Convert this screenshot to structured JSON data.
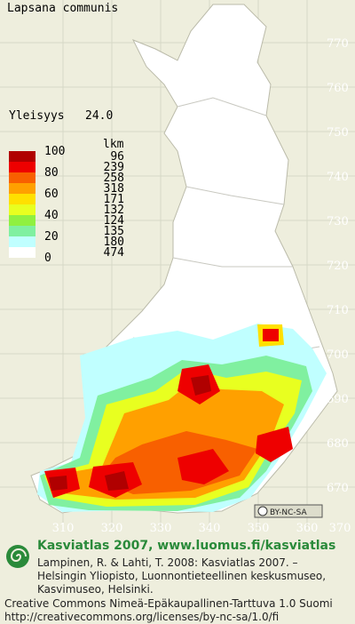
{
  "title": "Lapsana communis",
  "frequency": {
    "label": "Yleisyys",
    "value": "24.0"
  },
  "legend": {
    "scale_labels": [
      100,
      80,
      60,
      40,
      20,
      0
    ],
    "count_header": "lkm",
    "classes": [
      {
        "color": "#b00000",
        "count": 96
      },
      {
        "color": "#ee0000",
        "count": 239
      },
      {
        "color": "#f86000",
        "count": 258
      },
      {
        "color": "#ffa000",
        "count": 318
      },
      {
        "color": "#ffe000",
        "count": 171
      },
      {
        "color": "#e8ff20",
        "count": 132
      },
      {
        "color": "#90f040",
        "count": 124
      },
      {
        "color": "#80f0a0",
        "count": 135
      },
      {
        "color": "#c0ffff",
        "count": 180
      },
      {
        "color": "#ffffff",
        "count": 474
      }
    ]
  },
  "grid": {
    "northings": [
      770,
      760,
      750,
      740,
      730,
      720,
      710,
      700,
      690,
      680,
      670
    ],
    "eastings": [
      310,
      320,
      330,
      340,
      350,
      360,
      370
    ]
  },
  "badge": "BY-NC-SA",
  "footer": {
    "heading": "Kasviatlas 2007, www.luomus.fi/kasviatlas",
    "citation": [
      "Lampinen, R. & Lahti, T. 2008: Kasviatlas 2007. –",
      "Helsingin Yliopisto, Luonnontieteellinen keskusmuseo,",
      "Kasvimuseo, Helsinki."
    ],
    "license": [
      "Creative Commons Nimeä-Epäkaupallinen-Tarttuva 1.0 Suomi",
      "http://creativecommons.org/licenses/by-nc-sa/1.0/fi"
    ]
  }
}
